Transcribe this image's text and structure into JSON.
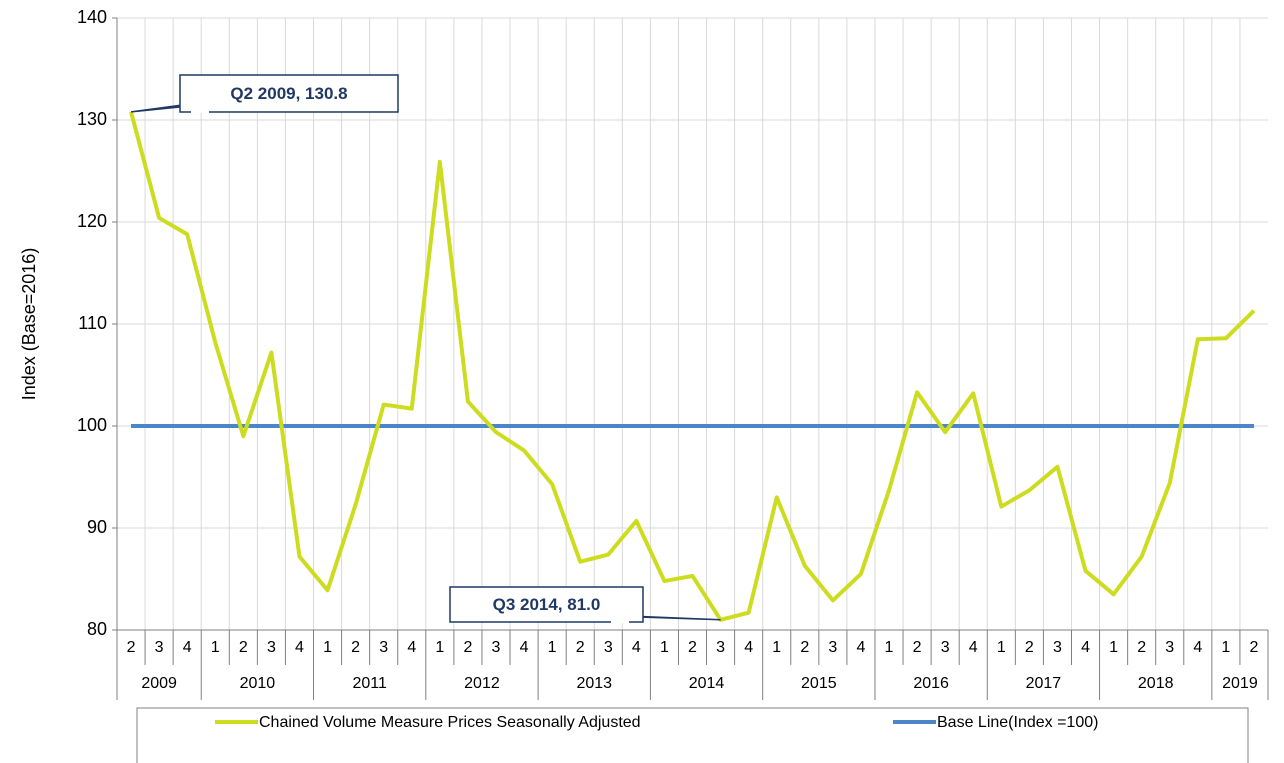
{
  "chart_data": {
    "type": "line",
    "y_label": "Index (Base=2016)",
    "categories": [
      "2",
      "3",
      "4",
      "1",
      "2",
      "3",
      "4",
      "1",
      "2",
      "3",
      "4",
      "1",
      "2",
      "3",
      "4",
      "1",
      "2",
      "3",
      "4",
      "1",
      "2",
      "3",
      "4",
      "1",
      "2",
      "3",
      "4",
      "1",
      "2",
      "3",
      "4",
      "1",
      "2",
      "3",
      "4",
      "1",
      "2",
      "3",
      "4",
      "1",
      "2"
    ],
    "years": [
      "2009",
      null,
      null,
      "2010",
      null,
      null,
      null,
      "2011",
      null,
      null,
      null,
      "2012",
      null,
      null,
      null,
      "2013",
      null,
      null,
      null,
      "2014",
      null,
      null,
      null,
      "2015",
      null,
      null,
      null,
      "2016",
      null,
      null,
      null,
      "2017",
      null,
      null,
      null,
      "2018",
      null,
      null,
      null,
      "2019",
      null
    ],
    "series": [
      {
        "name": "Chained Volume Measure Prices Seasonally Adjusted",
        "color": "#cddc1f",
        "values": [
          130.8,
          120.4,
          118.8,
          108.2,
          99.0,
          107.2,
          87.2,
          83.9,
          92.3,
          102.1,
          101.7,
          125.9,
          102.4,
          99.4,
          97.6,
          94.3,
          86.7,
          87.4,
          90.7,
          84.8,
          85.3,
          81.0,
          81.7,
          93.0,
          86.3,
          82.9,
          85.5,
          93.7,
          103.3,
          99.4,
          103.2,
          92.1,
          93.7,
          96.0,
          85.8,
          83.5,
          87.2,
          94.4,
          108.5,
          108.6,
          111.3
        ]
      },
      {
        "name": "Base Line(Index =100)",
        "color": "#4a86c8",
        "values": [
          100,
          100,
          100,
          100,
          100,
          100,
          100,
          100,
          100,
          100,
          100,
          100,
          100,
          100,
          100,
          100,
          100,
          100,
          100,
          100,
          100,
          100,
          100,
          100,
          100,
          100,
          100,
          100,
          100,
          100,
          100,
          100,
          100,
          100,
          100,
          100,
          100,
          100,
          100,
          100,
          100
        ]
      }
    ],
    "annotations": [
      {
        "text": "Q2 2009, 130.8",
        "index": 0
      },
      {
        "text": "Q3 2014, 81.0",
        "index": 21
      }
    ],
    "ylim": [
      80,
      140
    ],
    "yticks": [
      80,
      90,
      100,
      110,
      120,
      130,
      140
    ],
    "grid": true,
    "legend": "bottom"
  }
}
